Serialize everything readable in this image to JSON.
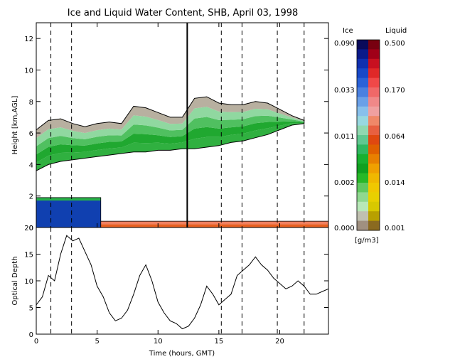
{
  "chart_data": [
    {
      "type": "heatmap",
      "title": "Ice and Liquid Water Content, SHB, April 03, 1998",
      "ylabel": "Height [km,AGL]",
      "xlim": [
        0,
        24
      ],
      "ylim": [
        0,
        13
      ],
      "x_ticks": [
        "0",
        "5",
        "10",
        "15",
        "20"
      ],
      "y_ticks": [
        "0",
        "2",
        "4",
        "6",
        "8",
        "10",
        "12"
      ],
      "dashed_x": [
        1.2,
        2.9,
        15.2,
        16.9,
        19.8,
        22.0
      ],
      "solid_x": [
        12.4
      ],
      "ice_layer": {
        "time": [
          0.0,
          1.0,
          2.0,
          3.0,
          4.0,
          5.0,
          6.0,
          7.0,
          8.0,
          9.0,
          10.0,
          11.0,
          12.0,
          13.0,
          14.0,
          15.0,
          16.0,
          17.0,
          18.0,
          19.0,
          20.0,
          21.0,
          22.0
        ],
        "top_km": [
          6.2,
          6.8,
          6.9,
          6.6,
          6.4,
          6.6,
          6.7,
          6.6,
          7.7,
          7.6,
          7.3,
          7.0,
          7.0,
          8.2,
          8.3,
          7.9,
          7.8,
          7.8,
          8.0,
          7.9,
          7.5,
          7.1,
          6.8
        ],
        "base_km": [
          3.6,
          4.0,
          4.2,
          4.3,
          4.4,
          4.5,
          4.6,
          4.7,
          4.8,
          4.8,
          4.9,
          4.9,
          5.0,
          5.0,
          5.1,
          5.2,
          5.4,
          5.5,
          5.7,
          5.9,
          6.2,
          6.5,
          6.6
        ]
      },
      "liquid_layer": {
        "segments": [
          {
            "start": 0.0,
            "end": 5.3,
            "top_km": 1.9,
            "base_km": 0.0
          },
          {
            "start": 5.3,
            "end": 24.0,
            "top_km": 0.4,
            "base_km": 0.0
          }
        ]
      }
    },
    {
      "type": "line",
      "ylabel": "Optical Depth",
      "xlabel": "Time (hours, GMT)",
      "xlim": [
        0,
        24
      ],
      "ylim": [
        0,
        20
      ],
      "x_ticks": [
        "0",
        "5",
        "10",
        "15",
        "20"
      ],
      "y_ticks": [
        "0",
        "5",
        "10",
        "15",
        "20"
      ],
      "x": [
        0.0,
        0.5,
        1.0,
        1.5,
        2.0,
        2.5,
        3.0,
        3.5,
        4.0,
        4.5,
        5.0,
        5.5,
        6.0,
        6.5,
        7.0,
        7.5,
        8.0,
        8.5,
        9.0,
        9.5,
        10.0,
        10.5,
        11.0,
        11.5,
        12.0,
        12.5,
        13.0,
        13.5,
        14.0,
        14.5,
        15.0,
        15.5,
        16.0,
        16.5,
        17.0,
        17.5,
        18.0,
        18.5,
        19.0,
        19.5,
        20.0,
        20.5,
        21.0,
        21.5,
        22.0,
        22.5,
        23.0,
        23.5,
        24.0
      ],
      "y": [
        5.5,
        7.0,
        11.0,
        10.0,
        15.0,
        18.5,
        17.5,
        18.0,
        15.5,
        13.0,
        9.0,
        7.0,
        4.0,
        2.5,
        3.0,
        4.5,
        7.5,
        11.0,
        13.0,
        10.0,
        6.0,
        4.0,
        2.5,
        2.0,
        1.0,
        1.5,
        3.0,
        5.5,
        9.0,
        7.5,
        5.5,
        6.5,
        7.5,
        11.0,
        12.0,
        13.0,
        14.5,
        13.0,
        12.0,
        10.5,
        9.5,
        8.5,
        9.0,
        10.0,
        9.0,
        7.5,
        7.5,
        8.0,
        8.5
      ]
    }
  ],
  "colorbar": {
    "ice_header": "Ice",
    "liquid_header": "Liquid",
    "unit_label": "[g/m3]",
    "ice_labels": [
      "0.090",
      "0.033",
      "0.011",
      "0.002",
      "0.000"
    ],
    "liquid_labels": [
      "0.500",
      "0.170",
      "0.064",
      "0.014",
      "0.001"
    ],
    "ice_colors": [
      "#0a0a5a",
      "#0b1a8a",
      "#1030b0",
      "#1848c8",
      "#2a62d8",
      "#4a80e0",
      "#6aa0e8",
      "#88c0ec",
      "#98d8e0",
      "#90d8b0",
      "#60c890",
      "#30b860",
      "#18b030",
      "#10a020",
      "#28b828",
      "#60c860",
      "#90d890",
      "#b8e8b8",
      "#c0c0b0",
      "#a09080"
    ],
    "liquid_colors": [
      "#780010",
      "#a00018",
      "#c81020",
      "#e02828",
      "#f04848",
      "#f06868",
      "#f08888",
      "#f0a0a0",
      "#f08868",
      "#e86040",
      "#e04810",
      "#e06000",
      "#e88000",
      "#f0a000",
      "#f0b800",
      "#f0c800",
      "#e8d000",
      "#d8c800",
      "#b8a000",
      "#8a6a20"
    ]
  }
}
